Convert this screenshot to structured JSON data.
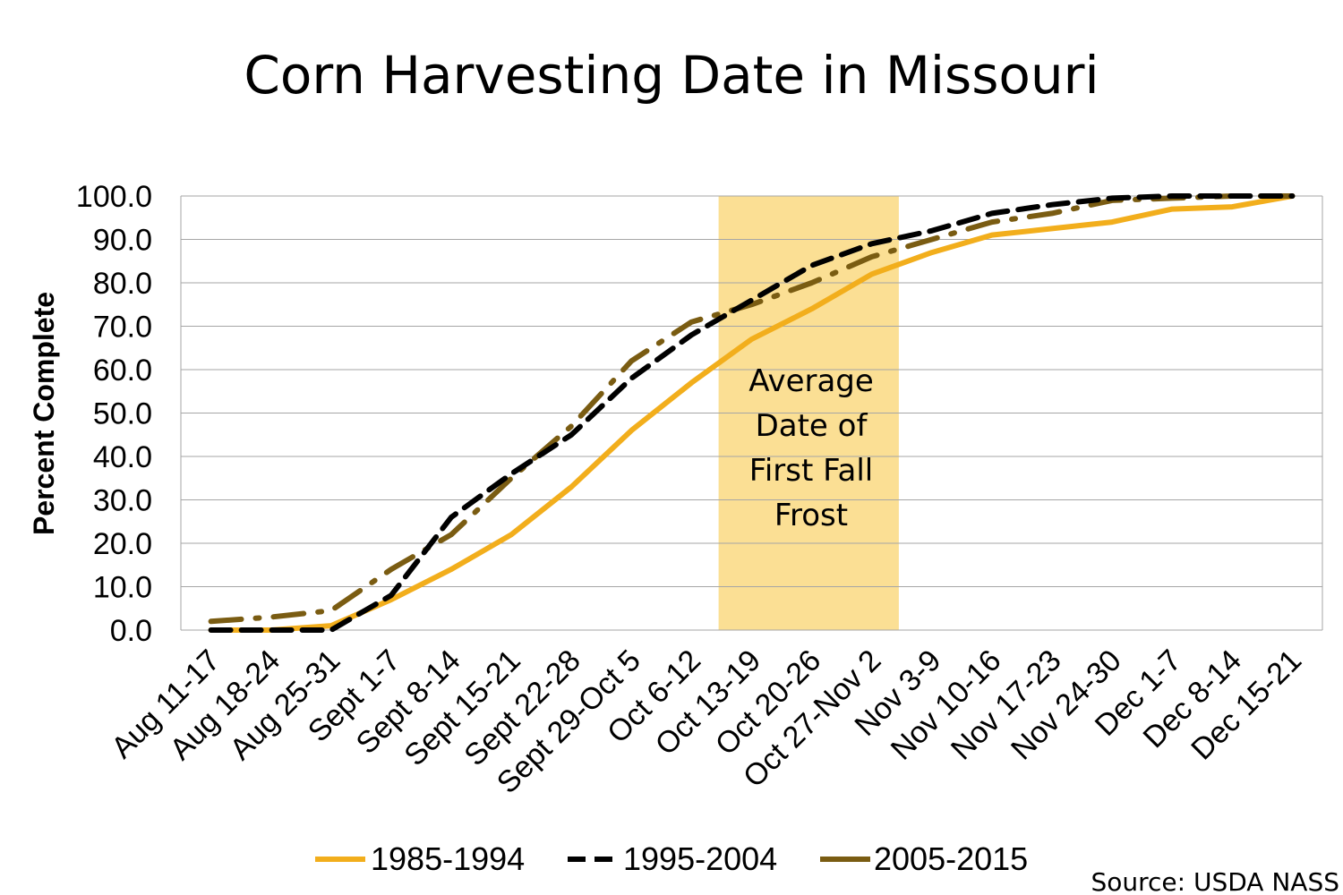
{
  "colors": {
    "series_1985_1994": "#F2AE1C",
    "series_1995_2004": "#000000",
    "series_2005_2015": "#7A5C12",
    "frost_band": "#FBDF94",
    "grid": "#A6A6A6"
  },
  "annotation": {
    "lines": [
      "Average",
      "Date of",
      "First Fall",
      "Frost"
    ],
    "band_start": "Oct 13-19",
    "band_end": "Oct 27-Nov 2"
  },
  "source": "Source: USDA NASS",
  "chart_data": {
    "type": "line",
    "title": "Corn Harvesting Date in Missouri",
    "xlabel": "",
    "ylabel": "Percent Complete",
    "ylim": [
      0,
      100
    ],
    "yticks": [
      "0.0",
      "10.0",
      "20.0",
      "30.0",
      "40.0",
      "50.0",
      "60.0",
      "70.0",
      "80.0",
      "90.0",
      "100.0"
    ],
    "grid": true,
    "legend_position": "bottom",
    "categories": [
      "Aug 11-17",
      "Aug 18-24",
      "Aug 25-31",
      "Sept 1-7",
      "Sept 8-14",
      "Sept 15-21",
      "Sept 22-28",
      "Sept 29-Oct 5",
      "Oct 6-12",
      "Oct 13-19",
      "Oct 20-26",
      "Oct 27-Nov 2",
      "Nov 3-9",
      "Nov 10-16",
      "Nov 17-23",
      "Nov 24-30",
      "Dec 1-7",
      "Dec 8-14",
      "Dec 15-21"
    ],
    "series": [
      {
        "name": "1985-1994",
        "style": "solid",
        "values": [
          0,
          0,
          1,
          7,
          14,
          22,
          33,
          46,
          57,
          67,
          74,
          82,
          87,
          91,
          92.5,
          94,
          97,
          97.5,
          100
        ]
      },
      {
        "name": "1995-2004",
        "style": "dash",
        "values": [
          0,
          0,
          0,
          8,
          26,
          36,
          45,
          58,
          68,
          76,
          84,
          89,
          92,
          96,
          98,
          99.5,
          100,
          100,
          100
        ]
      },
      {
        "name": "2005-2015",
        "style": "dashdot",
        "values": [
          2,
          3,
          4.5,
          14,
          22,
          35,
          47,
          62,
          71,
          75,
          80,
          86,
          90,
          94,
          96,
          99,
          99.5,
          100,
          100
        ]
      }
    ]
  }
}
